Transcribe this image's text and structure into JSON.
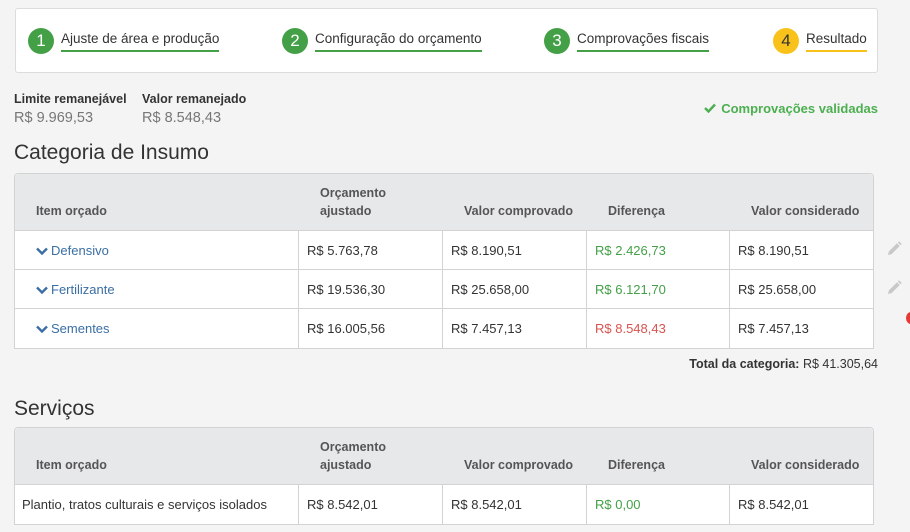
{
  "stepper": {
    "steps": [
      {
        "number": "1",
        "label": "Ajuste de área e produção"
      },
      {
        "number": "2",
        "label": "Configuração do orçamento"
      },
      {
        "number": "3",
        "label": "Comprovações fiscais"
      },
      {
        "number": "4",
        "label": "Resultado"
      }
    ]
  },
  "summary": {
    "limit_label": "Limite remanejável",
    "limit_value": "R$ 9.969,53",
    "moved_label": "Valor remanejado",
    "moved_value": "R$ 8.548,43",
    "validated_label": "Comprovações validadas"
  },
  "columns": {
    "item": "Item orçado",
    "budget_line1": "Orçamento",
    "budget_line2": "ajustado",
    "proven": "Valor comprovado",
    "difference": "Diferença",
    "considered": "Valor considerado"
  },
  "insumo": {
    "title": "Categoria de Insumo",
    "rows": [
      {
        "item": "Defensivo",
        "budget": "R$ 5.763,78",
        "proven": "R$ 8.190,51",
        "difference": "R$ 2.426,73",
        "considered": "R$ 8.190,51"
      },
      {
        "item": "Fertilizante",
        "budget": "R$ 19.536,30",
        "proven": "R$ 25.658,00",
        "difference": "R$ 6.121,70",
        "considered": "R$ 25.658,00"
      },
      {
        "item": "Sementes",
        "budget": "R$ 16.005,56",
        "proven": "R$ 7.457,13",
        "difference": "R$ 8.548,43",
        "considered": "R$ 7.457,13"
      }
    ],
    "total_label": "Total da categoria:",
    "total_value": "R$ 41.305,64"
  },
  "servicos": {
    "title": "Serviços",
    "rows": [
      {
        "item": "Plantio, tratos culturais e serviços isolados",
        "budget": "R$ 8.542,01",
        "proven": "R$ 8.542,01",
        "difference": "R$ 0,00",
        "considered": "R$ 8.542,01"
      }
    ]
  },
  "colors": {
    "accent_green": "#43a047",
    "current_step": "#f9c21a",
    "negative": "#d9534f",
    "link": "#3a6ea5"
  }
}
